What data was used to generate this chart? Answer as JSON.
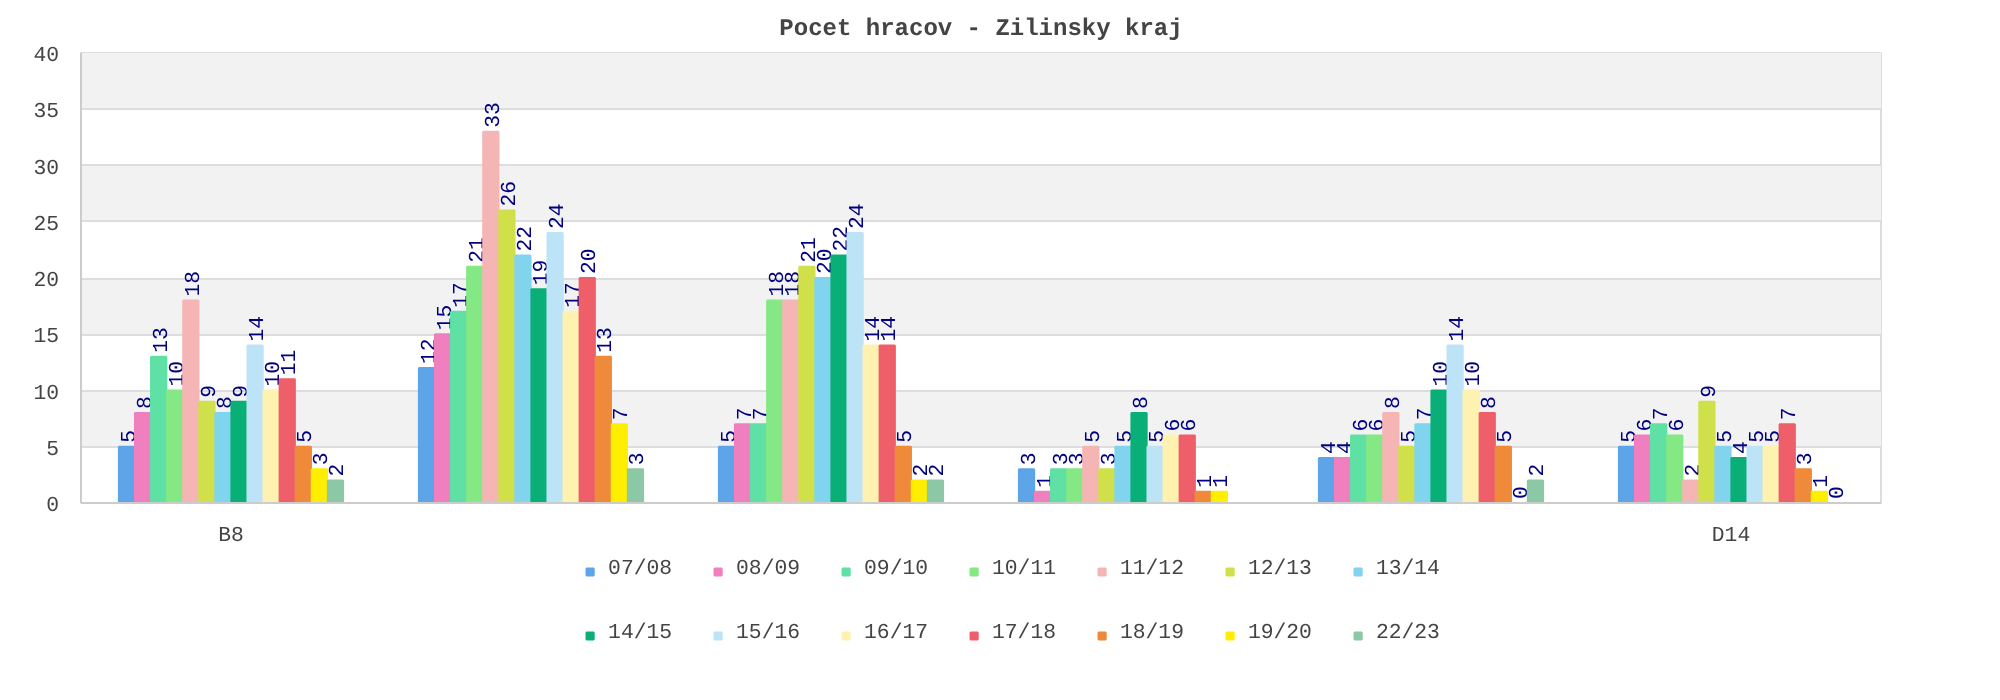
{
  "chart_data": {
    "type": "bar",
    "title": "Pocet hracov - Zilinsky kraj",
    "categories": [
      "B8",
      null,
      null,
      null,
      null,
      "D14"
    ],
    "series": [
      {
        "name": "07/08",
        "color": "#5da5e8",
        "values": [
          5,
          12,
          5,
          3,
          4,
          5
        ]
      },
      {
        "name": "08/09",
        "color": "#f07fbf",
        "values": [
          8,
          15,
          7,
          1,
          4,
          6
        ]
      },
      {
        "name": "09/10",
        "color": "#5fe0a5",
        "values": [
          13,
          17,
          7,
          3,
          6,
          7
        ]
      },
      {
        "name": "10/11",
        "color": "#84e884",
        "values": [
          10,
          21,
          18,
          3,
          6,
          6
        ]
      },
      {
        "name": "11/12",
        "color": "#f5b5b5",
        "values": [
          18,
          33,
          18,
          5,
          8,
          2
        ]
      },
      {
        "name": "12/13",
        "color": "#cfe04a",
        "values": [
          9,
          26,
          21,
          3,
          5,
          9
        ]
      },
      {
        "name": "13/14",
        "color": "#80d4ee",
        "values": [
          8,
          22,
          20,
          5,
          7,
          5
        ]
      },
      {
        "name": "14/15",
        "color": "#0aaf78",
        "values": [
          9,
          19,
          22,
          8,
          10,
          4
        ]
      },
      {
        "name": "15/16",
        "color": "#bde3f7",
        "values": [
          14,
          24,
          24,
          5,
          14,
          5
        ]
      },
      {
        "name": "16/17",
        "color": "#fff2b0",
        "values": [
          10,
          17,
          14,
          6,
          10,
          5
        ]
      },
      {
        "name": "17/18",
        "color": "#ee5f6a",
        "values": [
          11,
          20,
          14,
          6,
          8,
          7
        ]
      },
      {
        "name": "18/19",
        "color": "#ee8a3a",
        "values": [
          5,
          13,
          5,
          1,
          5,
          3
        ]
      },
      {
        "name": "19/20",
        "color": "#ffee00",
        "values": [
          3,
          7,
          2,
          1,
          0,
          1
        ]
      },
      {
        "name": "22/23",
        "color": "#8cc8a5",
        "values": [
          2,
          3,
          2,
          null,
          2,
          0
        ]
      }
    ],
    "ylim": [
      0,
      40
    ],
    "yticks": [
      0,
      5,
      10,
      15,
      20,
      25,
      30,
      35,
      40
    ],
    "grid": "y",
    "legend": "bottom",
    "data_labels": true
  }
}
